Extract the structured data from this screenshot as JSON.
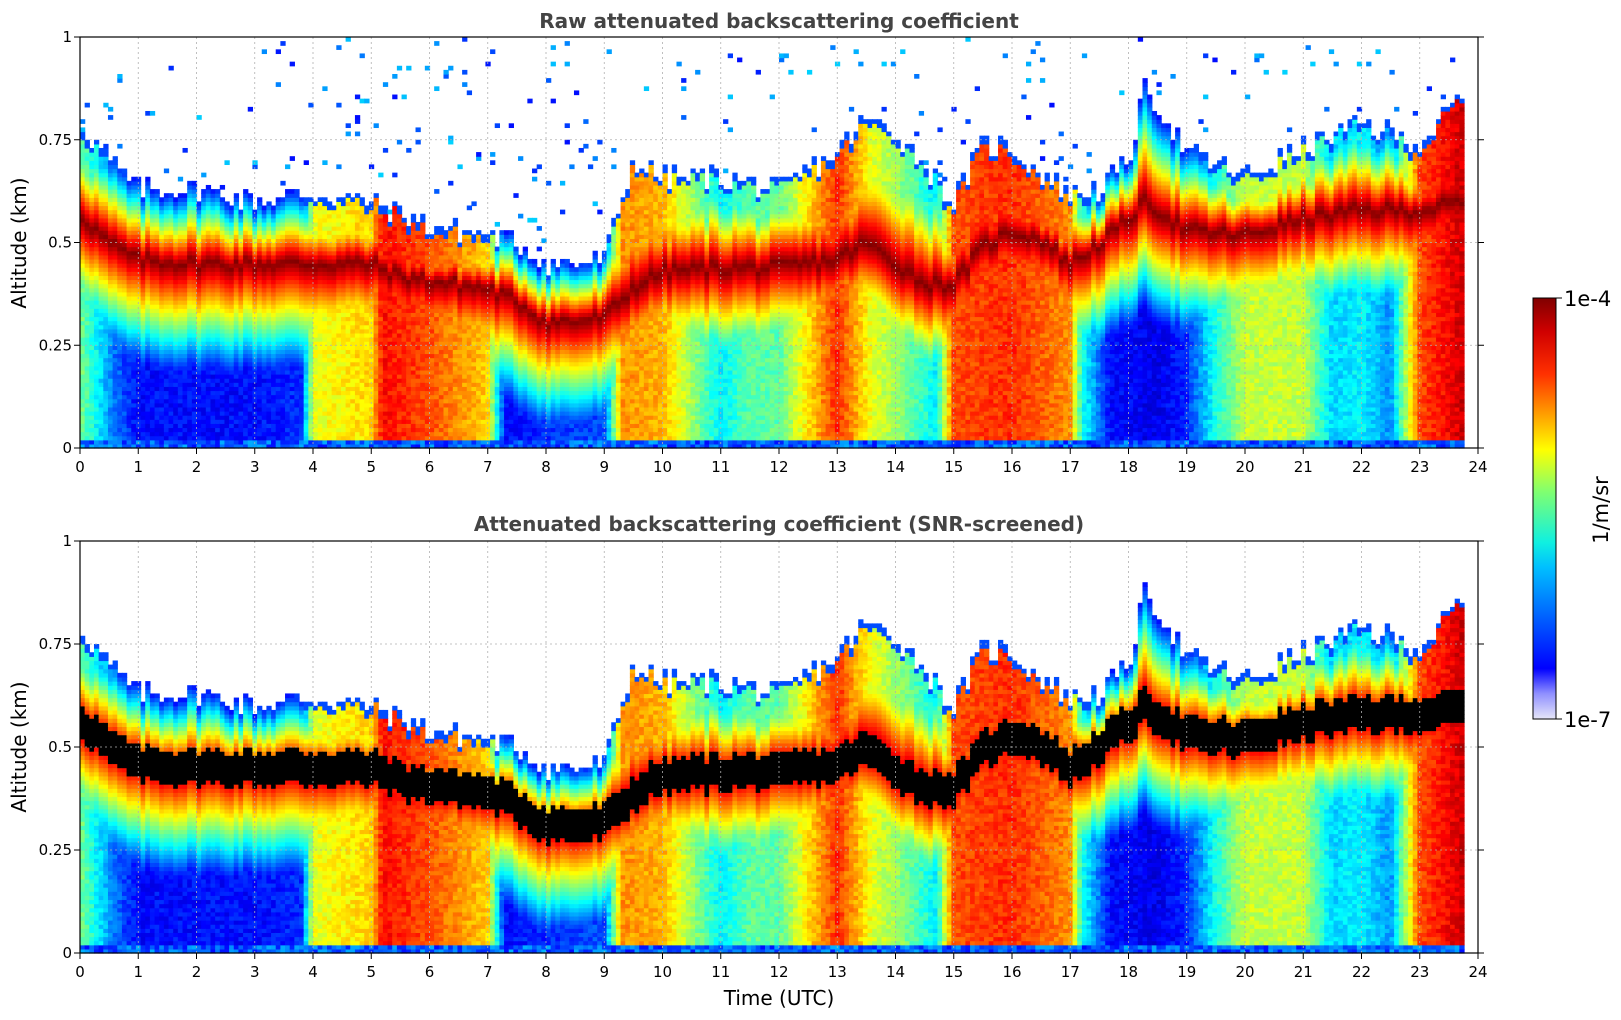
{
  "chart_data": [
    {
      "type": "heatmap",
      "title": "Raw attenuated backscattering coefficient",
      "xlabel": "",
      "ylabel": "Altitude (km)",
      "xlim": [
        0,
        24
      ],
      "ylim": [
        0,
        1
      ],
      "xticks": [
        "0",
        "1",
        "2",
        "3",
        "4",
        "5",
        "6",
        "7",
        "8",
        "9",
        "10",
        "11",
        "12",
        "13",
        "14",
        "15",
        "16",
        "17",
        "18",
        "19",
        "20",
        "21",
        "22",
        "23",
        "24"
      ],
      "yticks": [
        "0",
        "0.25",
        "0.5",
        "0.75",
        "1"
      ],
      "grid": true,
      "screened": false,
      "layer_center_km": [
        [
          0,
          0.57
        ],
        [
          0.5,
          0.5
        ],
        [
          1,
          0.46
        ],
        [
          2,
          0.45
        ],
        [
          3,
          0.45
        ],
        [
          4,
          0.45
        ],
        [
          5,
          0.45
        ],
        [
          5.5,
          0.42
        ],
        [
          6,
          0.41
        ],
        [
          7,
          0.39
        ],
        [
          7.5,
          0.36
        ],
        [
          8,
          0.31
        ],
        [
          8.5,
          0.31
        ],
        [
          9,
          0.32
        ],
        [
          9.5,
          0.39
        ],
        [
          10,
          0.43
        ],
        [
          11,
          0.44
        ],
        [
          12,
          0.44
        ],
        [
          13,
          0.46
        ],
        [
          13.5,
          0.5
        ],
        [
          14,
          0.45
        ],
        [
          14.5,
          0.4
        ],
        [
          15,
          0.4
        ],
        [
          15.5,
          0.49
        ],
        [
          16,
          0.53
        ],
        [
          16.5,
          0.51
        ],
        [
          17,
          0.45
        ],
        [
          17.5,
          0.5
        ],
        [
          18,
          0.56
        ],
        [
          18.3,
          0.6
        ],
        [
          19,
          0.53
        ],
        [
          20,
          0.52
        ],
        [
          21,
          0.56
        ],
        [
          22,
          0.58
        ],
        [
          23,
          0.58
        ],
        [
          23.8,
          0.6
        ]
      ],
      "top_of_signal_km": [
        [
          0,
          0.79
        ],
        [
          0.5,
          0.7
        ],
        [
          1,
          0.63
        ],
        [
          2,
          0.63
        ],
        [
          3,
          0.6
        ],
        [
          4,
          0.62
        ],
        [
          5,
          0.6
        ],
        [
          5.5,
          0.57
        ],
        [
          6,
          0.54
        ],
        [
          7,
          0.52
        ],
        [
          7.5,
          0.5
        ],
        [
          8,
          0.45
        ],
        [
          8.5,
          0.45
        ],
        [
          9,
          0.46
        ],
        [
          9.5,
          0.7
        ],
        [
          10,
          0.66
        ],
        [
          11,
          0.66
        ],
        [
          12,
          0.63
        ],
        [
          13,
          0.72
        ],
        [
          13.5,
          0.8
        ],
        [
          14,
          0.77
        ],
        [
          14.5,
          0.69
        ],
        [
          15,
          0.6
        ],
        [
          15.5,
          0.74
        ],
        [
          16,
          0.73
        ],
        [
          16.5,
          0.67
        ],
        [
          17,
          0.62
        ],
        [
          17.5,
          0.63
        ],
        [
          18,
          0.7
        ],
        [
          18.3,
          0.88
        ],
        [
          19,
          0.72
        ],
        [
          20,
          0.66
        ],
        [
          21,
          0.73
        ],
        [
          22,
          0.79
        ],
        [
          23,
          0.74
        ],
        [
          23.8,
          0.87
        ]
      ],
      "surface_log10_value": [
        [
          0,
          -5.5
        ],
        [
          0.6,
          -6.3
        ],
        [
          1,
          -6.6
        ],
        [
          3,
          -6.6
        ],
        [
          3.8,
          -6.5
        ],
        [
          4,
          -5.2
        ],
        [
          5,
          -5.0
        ],
        [
          5.2,
          -4.4
        ],
        [
          6,
          -4.6
        ],
        [
          7,
          -5.0
        ],
        [
          7.3,
          -6.6
        ],
        [
          8,
          -6.5
        ],
        [
          9,
          -6.4
        ],
        [
          9.3,
          -4.8
        ],
        [
          10,
          -4.9
        ],
        [
          10.5,
          -5.4
        ],
        [
          11,
          -5.9
        ],
        [
          11.5,
          -5.6
        ],
        [
          12,
          -5.6
        ],
        [
          13,
          -4.5
        ],
        [
          13.6,
          -5.2
        ],
        [
          14,
          -5.4
        ],
        [
          14.7,
          -5.9
        ],
        [
          15,
          -4.6
        ],
        [
          16,
          -4.5
        ],
        [
          17,
          -4.8
        ],
        [
          17.2,
          -5.8
        ],
        [
          17.7,
          -6.6
        ],
        [
          18.5,
          -6.7
        ],
        [
          19,
          -6.5
        ],
        [
          19.5,
          -5.8
        ],
        [
          20,
          -5.3
        ],
        [
          21,
          -5.3
        ],
        [
          21.5,
          -6.0
        ],
        [
          22,
          -5.9
        ],
        [
          22.5,
          -6.2
        ],
        [
          23,
          -4.6
        ],
        [
          23.8,
          -4.2
        ]
      ]
    },
    {
      "type": "heatmap",
      "title": "Attenuated backscattering coefficient (SNR-screened)",
      "xlabel": "Time (UTC)",
      "ylabel": "Altitude (km)",
      "xlim": [
        0,
        24
      ],
      "ylim": [
        0,
        1
      ],
      "xticks": [
        "0",
        "1",
        "2",
        "3",
        "4",
        "5",
        "6",
        "7",
        "8",
        "9",
        "10",
        "11",
        "12",
        "13",
        "14",
        "15",
        "16",
        "17",
        "18",
        "19",
        "20",
        "21",
        "22",
        "23",
        "24"
      ],
      "yticks": [
        "0",
        "0.25",
        "0.5",
        "0.75",
        "1"
      ],
      "grid": true,
      "screened": true,
      "saturated_color": "#000000"
    }
  ],
  "colorbar": {
    "label": "1/m/sr",
    "max_label": "1e-4",
    "min_label": "1e-7",
    "log_min": -7,
    "log_max": -4,
    "colormap": "jet"
  }
}
